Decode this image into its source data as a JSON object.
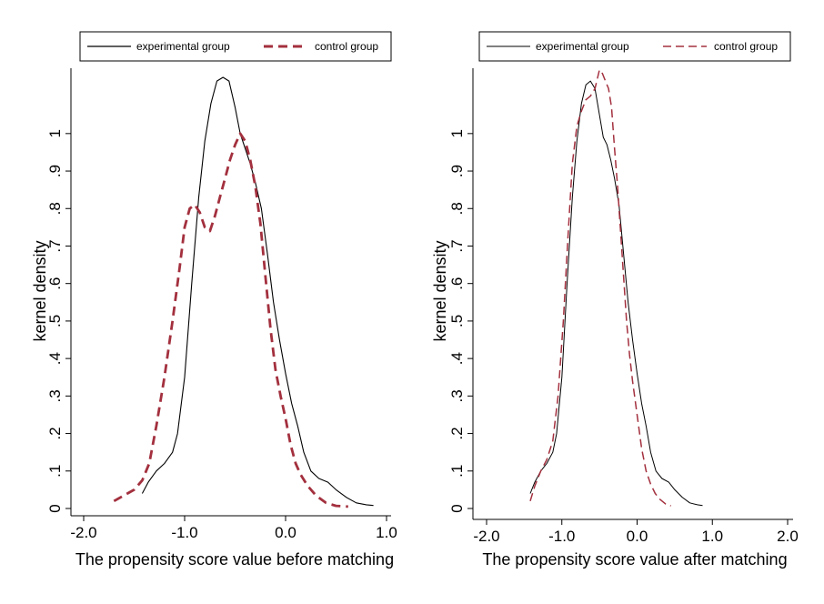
{
  "chart_data": [
    {
      "type": "line",
      "xlabel": "The propensity score value before matching",
      "ylabel": "kernel density",
      "xlim": [
        -2.0,
        1.0
      ],
      "ylim": [
        0,
        1.15
      ],
      "x_ticks": [
        "-2.0",
        "-1.0",
        "0.0",
        "1.0"
      ],
      "y_ticks": [
        "0",
        ".1",
        ".2",
        ".3",
        ".4",
        ".5",
        ".6",
        ".7",
        ".8",
        ".9",
        "1"
      ],
      "legend": {
        "position": "top"
      },
      "grid": false,
      "series": [
        {
          "name": "experimental group",
          "color": "#000000",
          "style": "solid",
          "points": [
            [
              -1.42,
              0.04
            ],
            [
              -1.36,
              0.07
            ],
            [
              -1.28,
              0.1
            ],
            [
              -1.2,
              0.12
            ],
            [
              -1.12,
              0.15
            ],
            [
              -1.07,
              0.2
            ],
            [
              -1.0,
              0.35
            ],
            [
              -0.93,
              0.6
            ],
            [
              -0.86,
              0.83
            ],
            [
              -0.8,
              0.98
            ],
            [
              -0.74,
              1.08
            ],
            [
              -0.68,
              1.14
            ],
            [
              -0.62,
              1.15
            ],
            [
              -0.56,
              1.14
            ],
            [
              -0.5,
              1.07
            ],
            [
              -0.45,
              1.0
            ],
            [
              -0.4,
              0.96
            ],
            [
              -0.35,
              0.92
            ],
            [
              -0.3,
              0.87
            ],
            [
              -0.24,
              0.8
            ],
            [
              -0.18,
              0.68
            ],
            [
              -0.12,
              0.55
            ],
            [
              -0.06,
              0.45
            ],
            [
              0.0,
              0.36
            ],
            [
              0.06,
              0.28
            ],
            [
              0.12,
              0.22
            ],
            [
              0.18,
              0.15
            ],
            [
              0.25,
              0.1
            ],
            [
              0.33,
              0.08
            ],
            [
              0.42,
              0.07
            ],
            [
              0.5,
              0.05
            ],
            [
              0.6,
              0.03
            ],
            [
              0.7,
              0.015
            ],
            [
              0.8,
              0.01
            ],
            [
              0.87,
              0.008
            ]
          ]
        },
        {
          "name": "control group",
          "color": "#a3303e",
          "style": "dashed",
          "points": [
            [
              -1.7,
              0.02
            ],
            [
              -1.6,
              0.035
            ],
            [
              -1.5,
              0.05
            ],
            [
              -1.42,
              0.075
            ],
            [
              -1.35,
              0.12
            ],
            [
              -1.28,
              0.22
            ],
            [
              -1.2,
              0.35
            ],
            [
              -1.12,
              0.5
            ],
            [
              -1.05,
              0.64
            ],
            [
              -1.0,
              0.75
            ],
            [
              -0.95,
              0.8
            ],
            [
              -0.9,
              0.81
            ],
            [
              -0.85,
              0.79
            ],
            [
              -0.8,
              0.75
            ],
            [
              -0.75,
              0.74
            ],
            [
              -0.7,
              0.78
            ],
            [
              -0.65,
              0.83
            ],
            [
              -0.6,
              0.88
            ],
            [
              -0.55,
              0.93
            ],
            [
              -0.5,
              0.97
            ],
            [
              -0.45,
              1.0
            ],
            [
              -0.4,
              0.98
            ],
            [
              -0.35,
              0.93
            ],
            [
              -0.3,
              0.86
            ],
            [
              -0.25,
              0.76
            ],
            [
              -0.2,
              0.62
            ],
            [
              -0.15,
              0.48
            ],
            [
              -0.1,
              0.37
            ],
            [
              -0.05,
              0.3
            ],
            [
              0.0,
              0.24
            ],
            [
              0.05,
              0.17
            ],
            [
              0.1,
              0.12
            ],
            [
              0.15,
              0.09
            ],
            [
              0.22,
              0.06
            ],
            [
              0.3,
              0.035
            ],
            [
              0.4,
              0.015
            ],
            [
              0.5,
              0.007
            ],
            [
              0.62,
              0.005
            ]
          ]
        }
      ]
    },
    {
      "type": "line",
      "xlabel": "The propensity score value after matching",
      "ylabel": "kernel density",
      "xlim": [
        -2.0,
        2.0
      ],
      "ylim": [
        0,
        1.15
      ],
      "x_ticks": [
        "-2.0",
        "-1.0",
        "0.0",
        "1.0",
        "2.0"
      ],
      "y_ticks": [
        "0",
        ".1",
        ".2",
        ".3",
        ".4",
        ".5",
        ".6",
        ".7",
        ".8",
        ".9",
        "1"
      ],
      "legend": {
        "position": "top"
      },
      "grid": false,
      "series": [
        {
          "name": "experimental group",
          "color": "#000000",
          "style": "solid",
          "points": [
            [
              -1.42,
              0.04
            ],
            [
              -1.36,
              0.07
            ],
            [
              -1.28,
              0.1
            ],
            [
              -1.2,
              0.12
            ],
            [
              -1.12,
              0.15
            ],
            [
              -1.07,
              0.2
            ],
            [
              -1.0,
              0.35
            ],
            [
              -0.93,
              0.6
            ],
            [
              -0.86,
              0.83
            ],
            [
              -0.8,
              0.98
            ],
            [
              -0.74,
              1.08
            ],
            [
              -0.68,
              1.13
            ],
            [
              -0.62,
              1.14
            ],
            [
              -0.56,
              1.12
            ],
            [
              -0.5,
              1.05
            ],
            [
              -0.45,
              0.99
            ],
            [
              -0.4,
              0.97
            ],
            [
              -0.35,
              0.93
            ],
            [
              -0.3,
              0.88
            ],
            [
              -0.24,
              0.81
            ],
            [
              -0.18,
              0.68
            ],
            [
              -0.12,
              0.55
            ],
            [
              -0.06,
              0.45
            ],
            [
              0.0,
              0.36
            ],
            [
              0.06,
              0.28
            ],
            [
              0.12,
              0.22
            ],
            [
              0.18,
              0.15
            ],
            [
              0.25,
              0.1
            ],
            [
              0.33,
              0.08
            ],
            [
              0.42,
              0.07
            ],
            [
              0.5,
              0.05
            ],
            [
              0.6,
              0.03
            ],
            [
              0.7,
              0.015
            ],
            [
              0.8,
              0.01
            ],
            [
              0.87,
              0.008
            ]
          ]
        },
        {
          "name": "control group",
          "color": "#a3303e",
          "style": "dashed",
          "points": [
            [
              -1.42,
              0.02
            ],
            [
              -1.36,
              0.06
            ],
            [
              -1.28,
              0.1
            ],
            [
              -1.2,
              0.13
            ],
            [
              -1.12,
              0.18
            ],
            [
              -1.05,
              0.3
            ],
            [
              -0.98,
              0.5
            ],
            [
              -0.92,
              0.72
            ],
            [
              -0.86,
              0.92
            ],
            [
              -0.8,
              1.02
            ],
            [
              -0.74,
              1.06
            ],
            [
              -0.68,
              1.09
            ],
            [
              -0.62,
              1.1
            ],
            [
              -0.56,
              1.12
            ],
            [
              -0.5,
              1.17
            ],
            [
              -0.46,
              1.16
            ],
            [
              -0.42,
              1.14
            ],
            [
              -0.38,
              1.12
            ],
            [
              -0.34,
              1.07
            ],
            [
              -0.3,
              0.96
            ],
            [
              -0.26,
              0.86
            ],
            [
              -0.22,
              0.74
            ],
            [
              -0.18,
              0.62
            ],
            [
              -0.14,
              0.5
            ],
            [
              -0.1,
              0.41
            ],
            [
              -0.06,
              0.34
            ],
            [
              0.0,
              0.25
            ],
            [
              0.06,
              0.16
            ],
            [
              0.12,
              0.1
            ],
            [
              0.18,
              0.065
            ],
            [
              0.24,
              0.04
            ],
            [
              0.3,
              0.025
            ],
            [
              0.38,
              0.012
            ],
            [
              0.45,
              0.007
            ]
          ]
        }
      ]
    }
  ]
}
